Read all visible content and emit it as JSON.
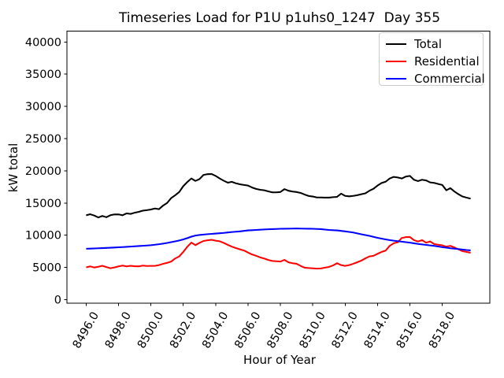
{
  "chart_data": {
    "type": "line",
    "title": "Timeseries Load for P1U p1uhs0_1247  Day 355",
    "xlabel": "Hour of Year",
    "ylabel": "kW total",
    "xlim": [
      8494.8125,
      8520.9375
    ],
    "ylim": [
      -550,
      41690
    ],
    "xticks": [
      8496,
      8498,
      8500,
      8502,
      8504,
      8506,
      8508,
      8510,
      8512,
      8514,
      8516,
      8518
    ],
    "xtick_labels": [
      "8496.0",
      "8498.0",
      "8500.0",
      "8502.0",
      "8504.0",
      "8506.0",
      "8508.0",
      "8510.0",
      "8512.0",
      "8514.0",
      "8516.0",
      "8518.0"
    ],
    "yticks": [
      0,
      5000,
      10000,
      15000,
      20000,
      25000,
      30000,
      35000,
      40000
    ],
    "grid": false,
    "legend_position": "upper right",
    "x": [
      8496.0,
      8496.25,
      8496.5,
      8496.75,
      8497.0,
      8497.25,
      8497.5,
      8497.75,
      8498.0,
      8498.25,
      8498.5,
      8498.75,
      8499.0,
      8499.25,
      8499.5,
      8499.75,
      8500.0,
      8500.25,
      8500.5,
      8500.75,
      8501.0,
      8501.25,
      8501.5,
      8501.75,
      8502.0,
      8502.25,
      8502.5,
      8502.75,
      8503.0,
      8503.25,
      8503.5,
      8503.75,
      8504.0,
      8504.25,
      8504.5,
      8504.75,
      8505.0,
      8505.25,
      8505.5,
      8505.75,
      8506.0,
      8506.25,
      8506.5,
      8506.75,
      8507.0,
      8507.25,
      8507.5,
      8507.75,
      8508.0,
      8508.25,
      8508.5,
      8508.75,
      8509.0,
      8509.25,
      8509.5,
      8509.75,
      8510.0,
      8510.25,
      8510.5,
      8510.75,
      8511.0,
      8511.25,
      8511.5,
      8511.75,
      8512.0,
      8512.25,
      8512.5,
      8512.75,
      8513.0,
      8513.25,
      8513.5,
      8513.75,
      8514.0,
      8514.25,
      8514.5,
      8514.75,
      8515.0,
      8515.25,
      8515.5,
      8515.75,
      8516.0,
      8516.25,
      8516.5,
      8516.75,
      8517.0,
      8517.25,
      8517.5,
      8517.75,
      8518.0,
      8518.25,
      8518.5,
      8518.75,
      8519.0,
      8519.25,
      8519.5,
      8519.75
    ],
    "series": [
      {
        "name": "Total",
        "color": "#000000",
        "values": [
          13100,
          13260,
          13060,
          12760,
          12990,
          12800,
          13110,
          13230,
          13230,
          13100,
          13390,
          13310,
          13500,
          13630,
          13820,
          13890,
          14000,
          14150,
          14050,
          14600,
          15010,
          15760,
          16210,
          16710,
          17620,
          18260,
          18810,
          18430,
          18710,
          19360,
          19480,
          19510,
          19210,
          18810,
          18460,
          18160,
          18290,
          18060,
          17910,
          17810,
          17710,
          17410,
          17190,
          17060,
          16980,
          16810,
          16660,
          16660,
          16710,
          17160,
          16910,
          16780,
          16710,
          16570,
          16310,
          16090,
          16010,
          15860,
          15860,
          15840,
          15840,
          15910,
          15960,
          16460,
          16110,
          16040,
          16110,
          16210,
          16370,
          16510,
          16910,
          17210,
          17710,
          18110,
          18310,
          18810,
          19060,
          18960,
          18810,
          19110,
          19210,
          18610,
          18410,
          18610,
          18510,
          18200,
          18130,
          17960,
          17800,
          16980,
          17310,
          16790,
          16370,
          16010,
          15840,
          15680
        ]
      },
      {
        "name": "Residential",
        "color": "#ff0000",
        "values": [
          5010,
          5160,
          4990,
          5110,
          5260,
          5060,
          4880,
          5000,
          5160,
          5290,
          5160,
          5260,
          5190,
          5170,
          5290,
          5230,
          5240,
          5240,
          5360,
          5570,
          5710,
          5910,
          6390,
          6710,
          7410,
          8210,
          8860,
          8460,
          8810,
          9110,
          9210,
          9290,
          9160,
          9060,
          8810,
          8510,
          8230,
          8010,
          7810,
          7630,
          7310,
          7010,
          6810,
          6560,
          6390,
          6160,
          6010,
          5960,
          5910,
          6180,
          5790,
          5660,
          5570,
          5240,
          4960,
          4910,
          4860,
          4810,
          4840,
          4960,
          5080,
          5310,
          5660,
          5360,
          5240,
          5360,
          5570,
          5810,
          6060,
          6410,
          6710,
          6800,
          7110,
          7410,
          7610,
          8350,
          8750,
          8910,
          9570,
          9710,
          9730,
          9240,
          9030,
          9240,
          8840,
          9030,
          8630,
          8530,
          8430,
          8230,
          8350,
          8110,
          7810,
          7520,
          7410,
          7280
        ]
      },
      {
        "name": "Commercial",
        "color": "#0000ff",
        "values": [
          7900,
          7925,
          7950,
          7975,
          8000,
          8030,
          8060,
          8095,
          8130,
          8165,
          8200,
          8240,
          8280,
          8320,
          8360,
          8405,
          8450,
          8525,
          8600,
          8700,
          8800,
          8920,
          9050,
          9180,
          9350,
          9550,
          9780,
          9950,
          10040,
          10100,
          10160,
          10210,
          10260,
          10310,
          10360,
          10430,
          10500,
          10550,
          10600,
          10675,
          10750,
          10785,
          10820,
          10860,
          10900,
          10925,
          10950,
          10975,
          11000,
          11010,
          11020,
          11035,
          11050,
          11035,
          11020,
          11010,
          11000,
          10975,
          10950,
          10885,
          10820,
          10785,
          10750,
          10675,
          10600,
          10510,
          10420,
          10285,
          10150,
          10025,
          9900,
          9750,
          9600,
          9475,
          9350,
          9250,
          9150,
          9075,
          9000,
          8925,
          8850,
          8750,
          8650,
          8575,
          8500,
          8425,
          8350,
          8250,
          8150,
          8065,
          7980,
          7915,
          7850,
          7775,
          7700,
          7650
        ]
      }
    ]
  }
}
